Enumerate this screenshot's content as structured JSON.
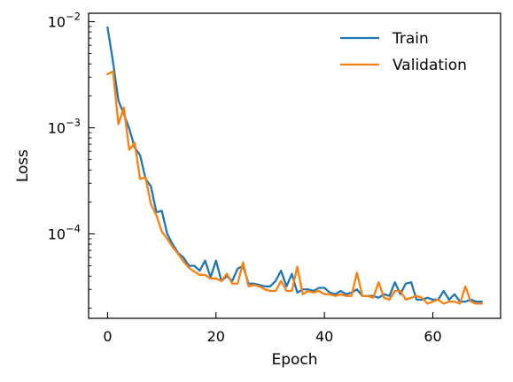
{
  "chart_data": {
    "type": "line",
    "title": "",
    "xlabel": "Epoch",
    "ylabel": "Loss",
    "xlim": [
      -3.5,
      72.5
    ],
    "ylim": [
      1.6e-05,
      0.012
    ],
    "yscale": "log",
    "grid": false,
    "legend_position": "top-right",
    "x_ticks": [
      0,
      20,
      40,
      60
    ],
    "x_tick_labels": [
      "0",
      "20",
      "40",
      "60"
    ],
    "y_ticks": [
      0.0001,
      0.001,
      0.01
    ],
    "y_tick_labels": [
      {
        "base": "10",
        "exp": "−4"
      },
      {
        "base": "10",
        "exp": "−3"
      },
      {
        "base": "10",
        "exp": "−2"
      }
    ],
    "series": [
      {
        "name": "Train",
        "color": "#1f77b4",
        "x": [
          0,
          1,
          2,
          3,
          4,
          5,
          6,
          7,
          8,
          9,
          10,
          11,
          12,
          13,
          14,
          15,
          16,
          17,
          18,
          19,
          20,
          21,
          22,
          23,
          24,
          25,
          26,
          27,
          28,
          29,
          30,
          31,
          32,
          33,
          34,
          35,
          36,
          37,
          38,
          39,
          40,
          41,
          42,
          43,
          44,
          45,
          46,
          47,
          48,
          49,
          50,
          51,
          52,
          53,
          54,
          55,
          56,
          57,
          58,
          59,
          60,
          61,
          62,
          63,
          64,
          65,
          66,
          67,
          68,
          69
        ],
        "values": [
          0.0088,
          0.0042,
          0.0018,
          0.00135,
          0.00098,
          0.00065,
          0.00055,
          0.00033,
          0.00028,
          0.00016,
          0.000165,
          0.0001,
          8e-05,
          6.6e-05,
          6e-05,
          5e-05,
          5e-05,
          4.5e-05,
          5.6e-05,
          3.9e-05,
          5.6e-05,
          3.6e-05,
          4e-05,
          3.6e-05,
          4.7e-05,
          5e-05,
          3.4e-05,
          3.4e-05,
          3.3e-05,
          3.2e-05,
          3.2e-05,
          3.6e-05,
          4.5e-05,
          3.2e-05,
          4.2e-05,
          2.8e-05,
          3e-05,
          3e-05,
          2.9e-05,
          3.1e-05,
          3.1e-05,
          2.8e-05,
          2.7e-05,
          2.9e-05,
          2.7e-05,
          2.8e-05,
          3e-05,
          2.6e-05,
          2.6e-05,
          2.6e-05,
          2.5e-05,
          2.7e-05,
          2.6e-05,
          3.5e-05,
          2.7e-05,
          3.4e-05,
          3.5e-05,
          2.4e-05,
          2.4e-05,
          2.5e-05,
          2.4e-05,
          2.4e-05,
          2.9e-05,
          2.4e-05,
          2.7e-05,
          2.3e-05,
          2.3e-05,
          2.4e-05,
          2.3e-05,
          2.3e-05
        ]
      },
      {
        "name": "Validation",
        "color": "#ff7f0e",
        "x": [
          0,
          1,
          2,
          3,
          4,
          5,
          6,
          7,
          8,
          9,
          10,
          11,
          12,
          13,
          14,
          15,
          16,
          17,
          18,
          19,
          20,
          21,
          22,
          23,
          24,
          25,
          26,
          27,
          28,
          29,
          30,
          31,
          32,
          33,
          34,
          35,
          36,
          37,
          38,
          39,
          40,
          41,
          42,
          43,
          44,
          45,
          46,
          47,
          48,
          49,
          50,
          51,
          52,
          53,
          54,
          55,
          56,
          57,
          58,
          59,
          60,
          61,
          62,
          63,
          64,
          65,
          66,
          67,
          68,
          69
        ],
        "values": [
          0.0032,
          0.0034,
          0.00108,
          0.00155,
          0.00062,
          0.00072,
          0.00033,
          0.00034,
          0.00019,
          0.00015,
          0.000105,
          9e-05,
          7.5e-05,
          6.5e-05,
          5.5e-05,
          4.8e-05,
          4.4e-05,
          4.1e-05,
          4.1e-05,
          3.8e-05,
          3.8e-05,
          3.6e-05,
          4.2e-05,
          3.4e-05,
          3.4e-05,
          5.4e-05,
          3.2e-05,
          3.3e-05,
          3.2e-05,
          3e-05,
          2.9e-05,
          2.9e-05,
          3.6e-05,
          2.9e-05,
          2.9e-05,
          4.9e-05,
          2.7e-05,
          2.9e-05,
          2.8e-05,
          2.9e-05,
          2.7e-05,
          2.7e-05,
          2.6e-05,
          2.7e-05,
          2.6e-05,
          2.6e-05,
          4.3e-05,
          2.6e-05,
          2.6e-05,
          2.5e-05,
          3.5e-05,
          2.5e-05,
          2.4e-05,
          2.9e-05,
          2.9e-05,
          2.4e-05,
          2.5e-05,
          2.6e-05,
          2.5e-05,
          2.2e-05,
          2.3e-05,
          2.4e-05,
          2.2e-05,
          2.3e-05,
          2.3e-05,
          2.2e-05,
          3.2e-05,
          2.3e-05,
          2.2e-05,
          2.2e-05
        ]
      }
    ]
  }
}
